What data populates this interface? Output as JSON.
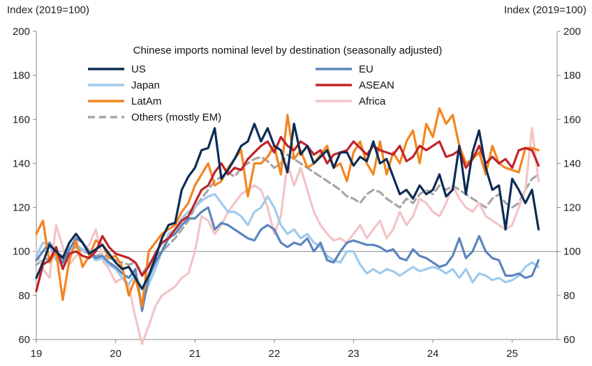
{
  "chart_data": {
    "type": "line",
    "title": "Chinese imports nominal level by destination (seasonally adjusted)",
    "ylabel_left": "Index (2019=100)",
    "ylabel_right": "Index (2019=100)",
    "ylim": [
      60,
      200
    ],
    "yticks": [
      60,
      80,
      100,
      120,
      140,
      160,
      180,
      200
    ],
    "xlim": [
      0,
      77
    ],
    "xticks": [
      {
        "label": "19",
        "x": 0
      },
      {
        "label": "20",
        "x": 12
      },
      {
        "label": "21",
        "x": 24
      },
      {
        "label": "22",
        "x": 36
      },
      {
        "label": "23",
        "x": 48
      },
      {
        "label": "24",
        "x": 60
      },
      {
        "label": "25",
        "x": 72
      }
    ],
    "reference_line": 100,
    "legend_placement": "top-center",
    "series": [
      {
        "name": "US",
        "color": "#0d2c54",
        "width": 3.2,
        "dash": false,
        "values": [
          88,
          95,
          103,
          100,
          97,
          104,
          108,
          104,
          99,
          101,
          103,
          99,
          95,
          92,
          93,
          88,
          83,
          89,
          97,
          106,
          112,
          113,
          128,
          134,
          138,
          146,
          147,
          156,
          133,
          137,
          142,
          148,
          150,
          158,
          150,
          156,
          148,
          146,
          136,
          158,
          144,
          148,
          140,
          143,
          146,
          138,
          145,
          145,
          139,
          143,
          141,
          150,
          140,
          142,
          134,
          126,
          128,
          124,
          130,
          126,
          128,
          135,
          125,
          128,
          148,
          126,
          145,
          155,
          138,
          128,
          130,
          110,
          133,
          128,
          122,
          128,
          110
        ]
      },
      {
        "name": "EU",
        "color": "#5b85bd",
        "width": 3.2,
        "dash": false,
        "values": [
          96,
          100,
          104,
          99,
          95,
          101,
          106,
          104,
          100,
          97,
          98,
          95,
          93,
          90,
          88,
          92,
          73,
          88,
          95,
          100,
          106,
          108,
          112,
          115,
          115,
          118,
          120,
          110,
          113,
          112,
          110,
          108,
          106,
          105,
          110,
          112,
          110,
          104,
          102,
          104,
          103,
          106,
          100,
          104,
          96,
          95,
          100,
          104,
          105,
          104,
          103,
          103,
          102,
          100,
          101,
          97,
          96,
          101,
          98,
          97,
          95,
          93,
          94,
          98,
          106,
          97,
          100,
          107,
          100,
          97,
          96,
          89,
          89,
          90,
          88,
          89,
          96
        ]
      },
      {
        "name": "Japan",
        "color": "#9fcaed",
        "width": 3.2,
        "dash": false,
        "values": [
          98,
          104,
          103,
          96,
          94,
          100,
          103,
          101,
          99,
          96,
          97,
          94,
          92,
          88,
          85,
          90,
          76,
          85,
          92,
          100,
          108,
          110,
          115,
          118,
          120,
          123,
          125,
          126,
          122,
          118,
          118,
          116,
          112,
          118,
          120,
          125,
          120,
          112,
          108,
          110,
          106,
          108,
          104,
          102,
          98,
          96,
          95,
          100,
          100,
          94,
          90,
          92,
          90,
          92,
          91,
          89,
          91,
          93,
          91,
          92,
          93,
          92,
          90,
          92,
          88,
          92,
          86,
          90,
          89,
          87,
          88,
          86,
          87,
          89,
          93,
          95,
          93
        ]
      },
      {
        "name": "ASEAN",
        "color": "#c02428",
        "width": 3.2,
        "dash": false,
        "values": [
          82,
          94,
          96,
          102,
          92,
          99,
          100,
          98,
          97,
          100,
          107,
          102,
          99,
          98,
          97,
          95,
          89,
          93,
          99,
          104,
          106,
          110,
          114,
          116,
          122,
          128,
          130,
          136,
          140,
          135,
          138,
          137,
          142,
          145,
          148,
          150,
          145,
          152,
          148,
          146,
          150,
          148,
          144,
          146,
          140,
          144,
          145,
          146,
          150,
          147,
          144,
          148,
          146,
          145,
          144,
          148,
          141,
          143,
          148,
          146,
          148,
          150,
          143,
          144,
          146,
          138,
          142,
          148,
          140,
          143,
          140,
          142,
          138,
          146,
          147,
          146,
          139
        ]
      },
      {
        "name": "LatAm",
        "color": "#f4851f",
        "width": 3.2,
        "dash": false,
        "values": [
          108,
          114,
          95,
          100,
          78,
          96,
          105,
          93,
          98,
          105,
          103,
          97,
          98,
          93,
          80,
          88,
          75,
          100,
          104,
          108,
          110,
          112,
          118,
          122,
          130,
          135,
          140,
          130,
          132,
          138,
          142,
          146,
          125,
          140,
          140,
          143,
          148,
          135,
          162,
          142,
          146,
          138,
          140,
          144,
          148,
          138,
          140,
          132,
          145,
          150,
          140,
          135,
          150,
          135,
          145,
          140,
          150,
          155,
          140,
          158,
          152,
          165,
          158,
          162,
          148,
          140,
          142,
          145,
          135,
          148,
          140,
          138,
          137,
          136,
          147,
          147,
          146
        ]
      },
      {
        "name": "Africa",
        "color": "#f3c4c6",
        "width": 3.2,
        "dash": false,
        "values": [
          100,
          92,
          88,
          112,
          102,
          94,
          98,
          100,
          103,
          110,
          96,
          92,
          86,
          88,
          84,
          70,
          58,
          66,
          75,
          80,
          82,
          84,
          88,
          90,
          100,
          116,
          114,
          108,
          112,
          118,
          122,
          126,
          128,
          130,
          128,
          120,
          108,
          116,
          140,
          130,
          138,
          128,
          118,
          112,
          108,
          105,
          106,
          104,
          108,
          112,
          106,
          110,
          114,
          106,
          110,
          118,
          112,
          116,
          124,
          122,
          118,
          116,
          122,
          130,
          124,
          120,
          118,
          122,
          116,
          114,
          112,
          110,
          112,
          120,
          128,
          156,
          132
        ]
      },
      {
        "name": "Others (mostly EM)",
        "color": "#a6a6a6",
        "width": 3.2,
        "dash": true,
        "values": [
          94,
          96,
          97,
          99,
          98,
          100,
          102,
          100,
          99,
          98,
          99,
          97,
          96,
          95,
          94,
          95,
          90,
          94,
          98,
          100,
          103,
          106,
          110,
          114,
          120,
          124,
          128,
          132,
          134,
          136,
          134,
          138,
          140,
          142,
          143,
          141,
          138,
          140,
          144,
          142,
          140,
          138,
          136,
          134,
          132,
          130,
          128,
          125,
          124,
          122,
          126,
          128,
          127,
          124,
          122,
          120,
          124,
          122,
          126,
          128,
          126,
          130,
          128,
          130,
          128,
          126,
          124,
          122,
          120,
          124,
          126,
          122,
          120,
          122,
          128,
          133,
          135
        ]
      }
    ]
  }
}
